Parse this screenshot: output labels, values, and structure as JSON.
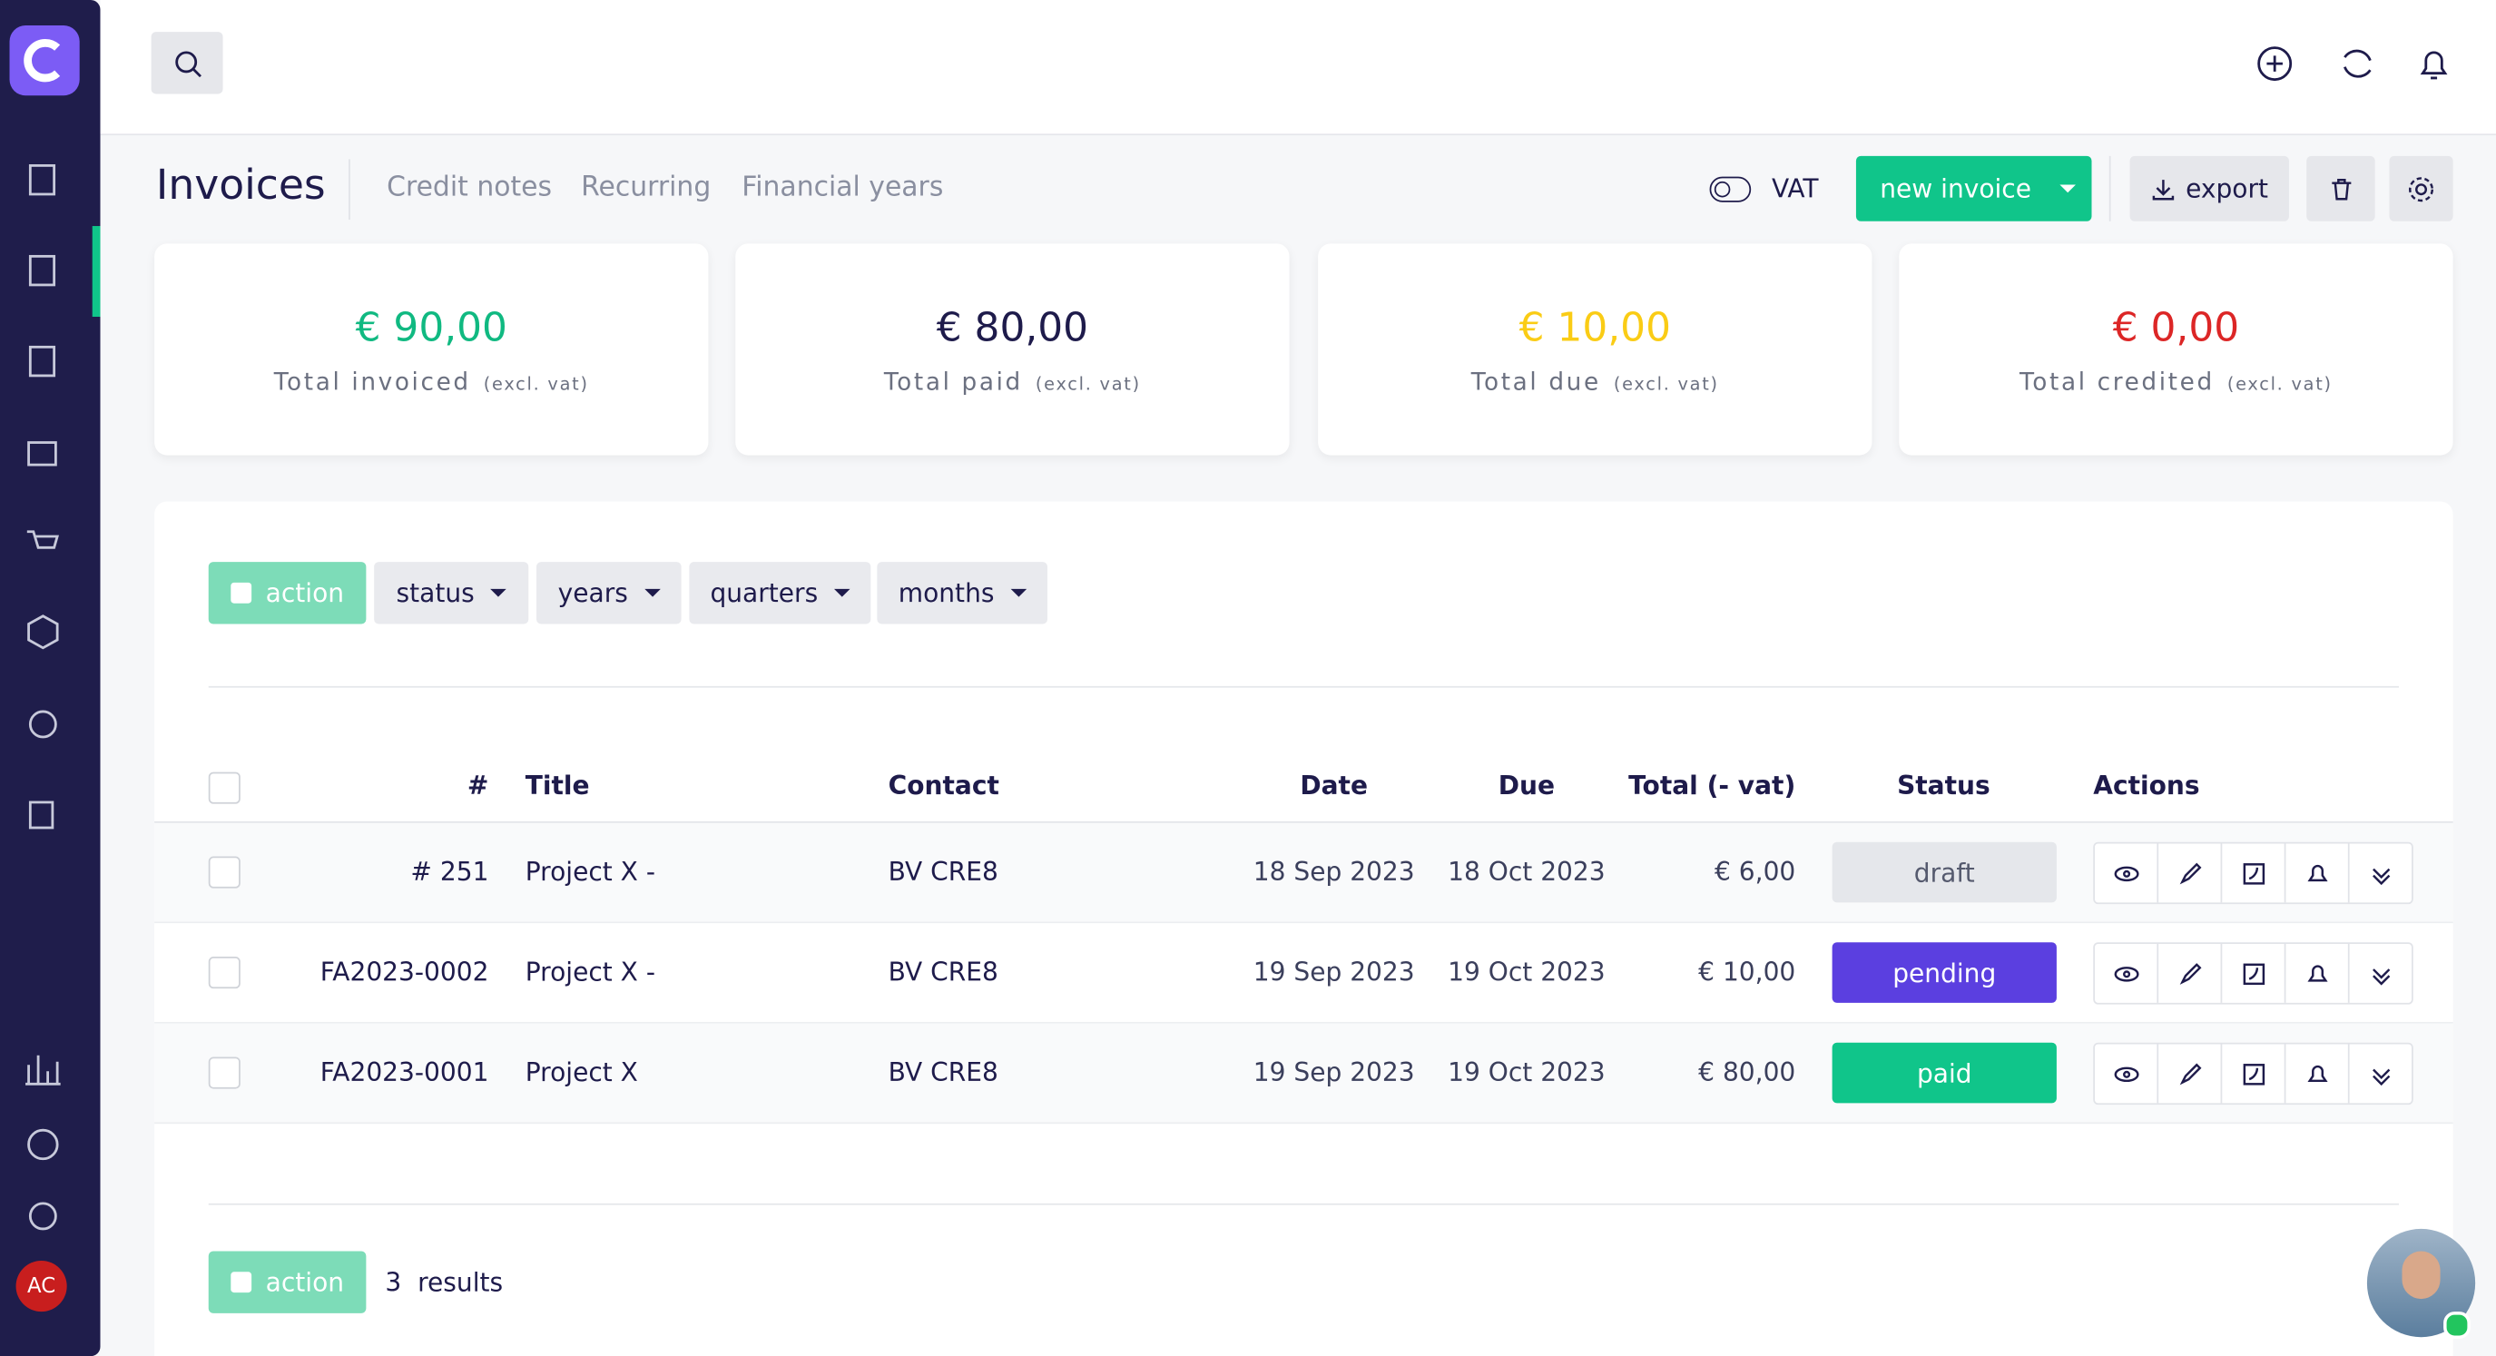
{
  "sidebar": {
    "avatar": "AC"
  },
  "header": {
    "title": "Invoices",
    "tabs": [
      "Credit notes",
      "Recurring",
      "Financial years"
    ],
    "vat": "VAT",
    "new_invoice": "new invoice",
    "export": "export"
  },
  "stats": [
    {
      "amount": "€ 90,00",
      "label": "Total invoiced",
      "note": "(excl. vat)",
      "color": "#10b981"
    },
    {
      "amount": "€ 80,00",
      "label": "Total paid",
      "note": "(excl. vat)",
      "color": "#1e1b4b"
    },
    {
      "amount": "€ 10,00",
      "label": "Total due",
      "note": "(excl. vat)",
      "color": "#facc15"
    },
    {
      "amount": "€ 0,00",
      "label": "Total credited",
      "note": "(excl. vat)",
      "color": "#dc2626"
    }
  ],
  "filters": [
    "action",
    "status",
    "years",
    "quarters",
    "months"
  ],
  "table": {
    "headers": [
      "#",
      "Title",
      "Contact",
      "Date",
      "Due",
      "Total (- vat)",
      "Status",
      "Actions"
    ],
    "rows": [
      {
        "number": "# 251",
        "title": "Project X -",
        "contact": "BV CRE8",
        "date": "18 Sep 2023",
        "due": "18 Oct 2023",
        "total": "€ 6,00",
        "status": "draft",
        "status_color": "#e5e7eb"
      },
      {
        "number": "FA2023-0002",
        "title": "Project X -",
        "contact": "BV CRE8",
        "date": "19 Sep 2023",
        "due": "19 Oct 2023",
        "total": "€ 10,00",
        "status": "pending",
        "status_color": "#5b3fe0"
      },
      {
        "number": "FA2023-0001",
        "title": "Project X",
        "contact": "BV CRE8",
        "date": "19 Sep 2023",
        "due": "19 Oct 2023",
        "total": "€ 80,00",
        "status": "paid",
        "status_color": "#10c58a"
      }
    ]
  },
  "footer": {
    "action": "action",
    "count": "3",
    "results": "results"
  }
}
